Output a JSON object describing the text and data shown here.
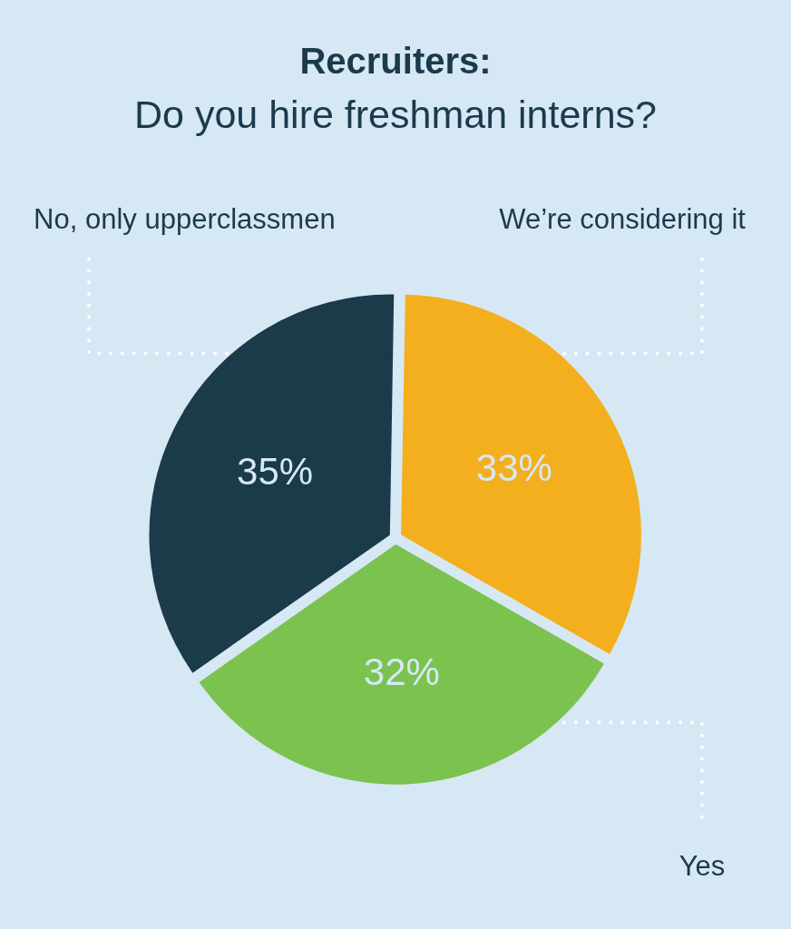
{
  "chart_data": {
    "type": "pie",
    "title": "Recruiters:",
    "subtitle": "Do you hire freshman interns?",
    "categories": [
      "We’re considering it",
      "Yes",
      "No, only upperclassmen"
    ],
    "values": [
      33,
      32,
      35
    ],
    "colors": [
      "#f3af1d",
      "#7cc24f",
      "#1b3a4a"
    ],
    "value_labels": [
      "33%",
      "32%",
      "35%"
    ]
  }
}
